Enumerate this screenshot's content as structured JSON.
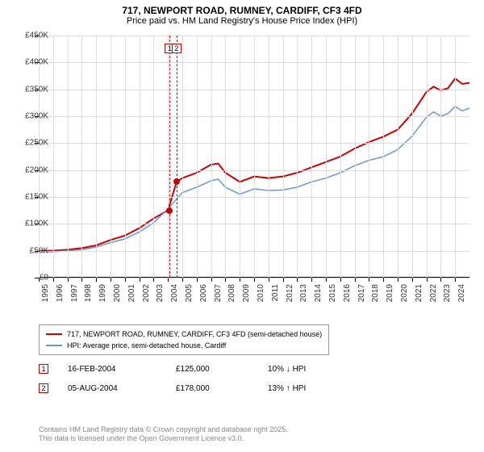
{
  "title": "717, NEWPORT ROAD, RUMNEY, CARDIFF, CF3 4FD",
  "subtitle": "Price paid vs. HM Land Registry's House Price Index (HPI)",
  "chart": {
    "type": "line",
    "x_domain": [
      1995,
      2025
    ],
    "y_domain": [
      0,
      450
    ],
    "y_ticks": [
      0,
      50,
      100,
      150,
      200,
      250,
      300,
      350,
      400,
      450
    ],
    "y_tick_prefix": "£",
    "y_tick_suffix": "K",
    "x_ticks": [
      1995,
      1996,
      1997,
      1998,
      1999,
      2000,
      2001,
      2002,
      2003,
      2004,
      2005,
      2006,
      2007,
      2008,
      2009,
      2010,
      2011,
      2012,
      2013,
      2014,
      2015,
      2016,
      2017,
      2018,
      2019,
      2020,
      2021,
      2022,
      2023,
      2024
    ],
    "grid_color": "#dddddd",
    "background_color": "#ffffff",
    "series": [
      {
        "name": "price_paid",
        "label": "717, NEWPORT ROAD, RUMNEY, CARDIFF, CF3 4FD (semi-detached house)",
        "color": "#cc0000",
        "width": 2,
        "points": [
          [
            1995,
            50
          ],
          [
            1996,
            50
          ],
          [
            1997,
            52
          ],
          [
            1998,
            55
          ],
          [
            1999,
            60
          ],
          [
            2000,
            70
          ],
          [
            2001,
            78
          ],
          [
            2002,
            92
          ],
          [
            2003,
            110
          ],
          [
            2004,
            125
          ],
          [
            2004.6,
            178
          ],
          [
            2005,
            185
          ],
          [
            2006,
            195
          ],
          [
            2007,
            210
          ],
          [
            2007.5,
            212
          ],
          [
            2008,
            195
          ],
          [
            2009,
            178
          ],
          [
            2010,
            188
          ],
          [
            2011,
            185
          ],
          [
            2012,
            188
          ],
          [
            2013,
            195
          ],
          [
            2014,
            205
          ],
          [
            2015,
            215
          ],
          [
            2016,
            225
          ],
          [
            2017,
            240
          ],
          [
            2018,
            252
          ],
          [
            2019,
            262
          ],
          [
            2020,
            275
          ],
          [
            2021,
            305
          ],
          [
            2022,
            345
          ],
          [
            2022.5,
            355
          ],
          [
            2023,
            348
          ],
          [
            2023.5,
            352
          ],
          [
            2024,
            370
          ],
          [
            2024.5,
            360
          ],
          [
            2025,
            362
          ]
        ]
      },
      {
        "name": "hpi",
        "label": "HPI: Average price, semi-detached house, Cardiff",
        "color": "#6699cc",
        "width": 1.5,
        "points": [
          [
            1995,
            48
          ],
          [
            1996,
            48
          ],
          [
            1997,
            50
          ],
          [
            1998,
            52
          ],
          [
            1999,
            57
          ],
          [
            2000,
            65
          ],
          [
            2001,
            72
          ],
          [
            2002,
            85
          ],
          [
            2003,
            102
          ],
          [
            2004,
            128
          ],
          [
            2005,
            158
          ],
          [
            2006,
            168
          ],
          [
            2007,
            180
          ],
          [
            2007.5,
            183
          ],
          [
            2008,
            168
          ],
          [
            2009,
            155
          ],
          [
            2010,
            165
          ],
          [
            2011,
            162
          ],
          [
            2012,
            163
          ],
          [
            2013,
            168
          ],
          [
            2014,
            178
          ],
          [
            2015,
            185
          ],
          [
            2016,
            195
          ],
          [
            2017,
            208
          ],
          [
            2018,
            218
          ],
          [
            2019,
            225
          ],
          [
            2020,
            238
          ],
          [
            2021,
            263
          ],
          [
            2022,
            298
          ],
          [
            2022.5,
            308
          ],
          [
            2023,
            300
          ],
          [
            2023.5,
            305
          ],
          [
            2024,
            318
          ],
          [
            2024.5,
            310
          ],
          [
            2025,
            315
          ]
        ]
      }
    ],
    "vertical_markers": [
      {
        "x": 2004.12,
        "label": "1"
      },
      {
        "x": 2004.6,
        "label": "2"
      }
    ],
    "sale_points": [
      {
        "x": 2004.12,
        "y": 125
      },
      {
        "x": 2004.6,
        "y": 178
      }
    ]
  },
  "legend": {
    "items": [
      {
        "color": "#cc0000",
        "label": "717, NEWPORT ROAD, RUMNEY, CARDIFF, CF3 4FD (semi-detached house)"
      },
      {
        "color": "#6699cc",
        "label": "HPI: Average price, semi-detached house, Cardiff"
      }
    ]
  },
  "transactions": [
    {
      "num": "1",
      "date": "16-FEB-2004",
      "price": "£125,000",
      "diff": "10% ↓ HPI"
    },
    {
      "num": "2",
      "date": "05-AUG-2004",
      "price": "£178,000",
      "diff": "13% ↑ HPI"
    }
  ],
  "footnote1": "Contains HM Land Registry data © Crown copyright and database right 2025.",
  "footnote2": "This data is licensed under the Open Government Licence v3.0."
}
